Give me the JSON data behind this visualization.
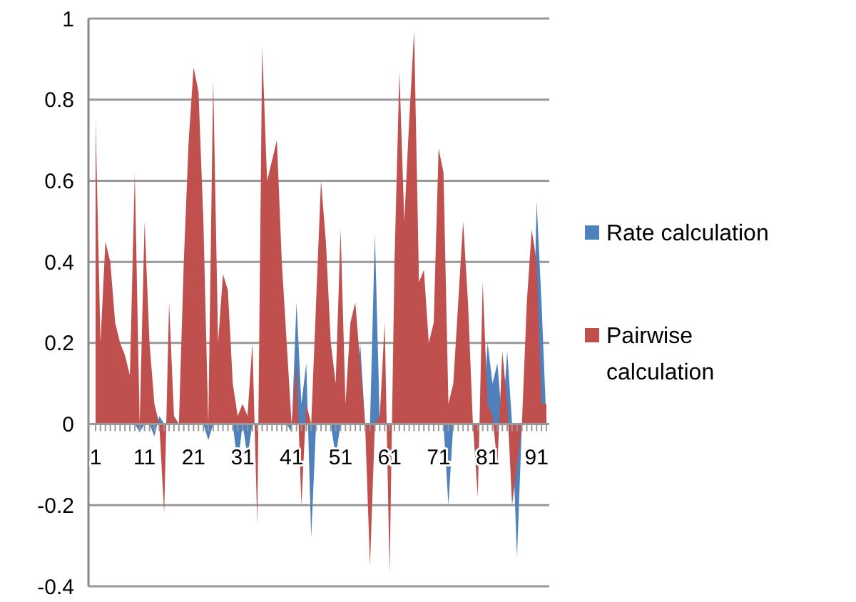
{
  "chart_data": {
    "type": "area",
    "categories": [
      "1",
      null,
      null,
      null,
      null,
      null,
      null,
      null,
      null,
      null,
      "11",
      null,
      null,
      null,
      null,
      null,
      null,
      null,
      null,
      null,
      "21",
      null,
      null,
      null,
      null,
      null,
      null,
      null,
      null,
      null,
      "31",
      null,
      null,
      null,
      null,
      null,
      null,
      null,
      null,
      null,
      "41",
      null,
      null,
      null,
      null,
      null,
      null,
      null,
      null,
      null,
      "51",
      null,
      null,
      null,
      null,
      null,
      null,
      null,
      null,
      null,
      "61",
      null,
      null,
      null,
      null,
      null,
      null,
      null,
      null,
      null,
      "71",
      null,
      null,
      null,
      null,
      null,
      null,
      null,
      null,
      null,
      "81",
      null,
      null,
      null,
      null,
      null,
      null,
      null,
      null,
      null,
      "91",
      null,
      null
    ],
    "series": [
      {
        "name": "Rate calculation",
        "color": "#4f81bd",
        "values": [
          null,
          null,
          null,
          null,
          null,
          null,
          null,
          null,
          0,
          -0.02,
          0,
          0,
          -0.03,
          0.02,
          0,
          null,
          null,
          null,
          null,
          null,
          null,
          null,
          0,
          -0.04,
          0,
          null,
          null,
          null,
          0,
          -0.1,
          0,
          -0.08,
          0,
          null,
          null,
          null,
          null,
          null,
          null,
          0,
          -0.02,
          0.3,
          0.05,
          0.15,
          -0.28,
          0,
          null,
          null,
          0,
          -0.08,
          0,
          null,
          null,
          0,
          0.2,
          0,
          0,
          0.47,
          0,
          null,
          null,
          null,
          null,
          null,
          null,
          null,
          null,
          null,
          null,
          null,
          null,
          0,
          -0.2,
          0,
          null,
          null,
          null,
          null,
          null,
          0,
          0.2,
          0.1,
          0.15,
          0,
          0.18,
          0,
          -0.33,
          0,
          null,
          0,
          0.55,
          0.3,
          0
        ]
      },
      {
        "name": "Pairwise calculation",
        "color": "#c0504d",
        "values": [
          0.75,
          0.2,
          0.45,
          0.4,
          0.25,
          0.2,
          0.17,
          0.12,
          0.62,
          0,
          0.5,
          0.2,
          0.05,
          0,
          -0.22,
          0.3,
          0.02,
          0,
          0.4,
          0.7,
          0.88,
          0.82,
          0.5,
          0,
          0.85,
          0.2,
          0.37,
          0.33,
          0.1,
          0.02,
          0.05,
          0.02,
          0.2,
          -0.25,
          0.93,
          0.6,
          0.65,
          0.7,
          0.4,
          0.2,
          0,
          0.15,
          -0.2,
          0.05,
          0,
          0.3,
          0.6,
          0.45,
          0.2,
          0.1,
          0.48,
          0.05,
          0.25,
          0.3,
          0.15,
          0,
          -0.35,
          0,
          0.02,
          0.25,
          -0.37,
          0.4,
          0.87,
          0.5,
          0.75,
          0.97,
          0.35,
          0.38,
          0.2,
          0.25,
          0.68,
          0.62,
          0.05,
          0.1,
          0.3,
          0.5,
          0.3,
          0,
          -0.18,
          0.35,
          0.05,
          0.02,
          -0.1,
          0.18,
          0.05,
          -0.2,
          -0.1,
          0,
          0.3,
          0.48,
          0.4,
          0.05,
          0.05
        ]
      }
    ],
    "ylim": [
      -0.4,
      1
    ],
    "yticks": [
      -0.4,
      -0.2,
      0,
      0.2,
      0.4,
      0.6,
      0.8,
      1
    ],
    "grid": "y",
    "legend": "right"
  }
}
